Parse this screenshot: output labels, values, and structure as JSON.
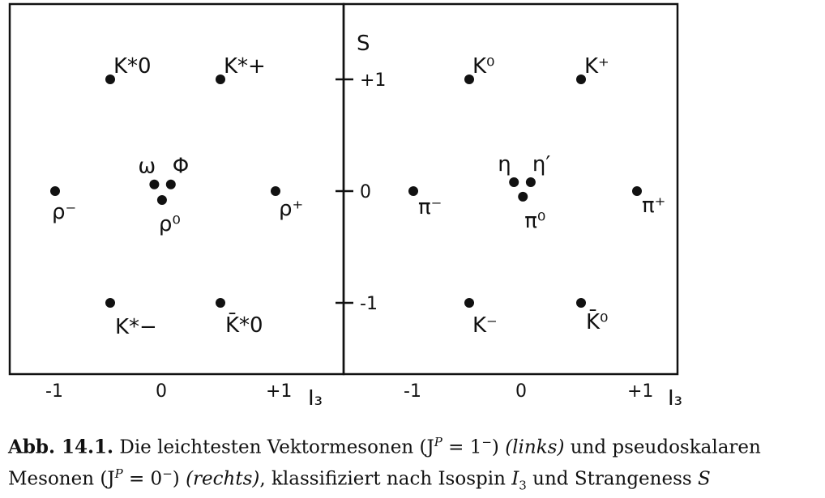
{
  "chart_data": [
    {
      "type": "scatter",
      "panel": "left",
      "xlabel": "I₃",
      "ylabel": "",
      "xlim": [
        -1.1,
        1.55
      ],
      "ylim": [
        -1.7,
        1.7
      ],
      "x_ticks": [
        "-1",
        "0",
        "+1"
      ],
      "points": [
        {
          "label": "K*0",
          "x": -0.5,
          "y": 1
        },
        {
          "label": "K*+",
          "x": 0.5,
          "y": 1
        },
        {
          "label": "ρ⁻",
          "x": -1,
          "y": 0
        },
        {
          "label": "ω",
          "x": -0.1,
          "y": 0.06
        },
        {
          "label": "Φ",
          "x": 0.05,
          "y": 0.06
        },
        {
          "label": "ρ⁰",
          "x": -0.03,
          "y": -0.08
        },
        {
          "label": "ρ⁺",
          "x": 1,
          "y": 0
        },
        {
          "label": "K*−",
          "x": -0.5,
          "y": -1
        },
        {
          "label": "K̄*0",
          "x": 0.5,
          "y": -1
        }
      ]
    },
    {
      "type": "scatter",
      "panel": "right",
      "xlabel": "I₃",
      "ylabel": "S",
      "xlim": [
        -1.6,
        1.55
      ],
      "ylim": [
        -1.7,
        1.7
      ],
      "x_ticks": [
        "-1",
        "0",
        "+1"
      ],
      "y_ticks": [
        "+1",
        "0",
        "-1"
      ],
      "points": [
        {
          "label": "K⁰",
          "x": -0.5,
          "y": 1
        },
        {
          "label": "K⁺",
          "x": 0.5,
          "y": 1
        },
        {
          "label": "π⁻",
          "x": -1,
          "y": 0
        },
        {
          "label": "η",
          "x": -0.1,
          "y": 0.08
        },
        {
          "label": "η′",
          "x": 0.05,
          "y": 0.08
        },
        {
          "label": "π⁰",
          "x": -0.02,
          "y": -0.05
        },
        {
          "label": "π⁺",
          "x": 1,
          "y": 0
        },
        {
          "label": "K⁻",
          "x": -0.5,
          "y": -1
        },
        {
          "label": "K̄⁰",
          "x": 0.5,
          "y": -1
        }
      ]
    }
  ],
  "caption": {
    "label": "Abb. 14.1.",
    "line1": "Die leichtesten Vektormesonen (J",
    "jp1": "P",
    "eq1": " = 1",
    "minus1": "−",
    "after1": ") ",
    "links": "(links)",
    "und": " und pseudoskalaren",
    "line2": "Mesonen (J",
    "jp2": "P",
    "eq2": " = 0",
    "minus2": "−",
    "after2": ") ",
    "rechts": "(rechts)",
    "rest": ", klassifiziert nach Isospin ",
    "I": "I",
    "sub3": "3",
    "und2": " und Strangeness ",
    "S": "S"
  }
}
